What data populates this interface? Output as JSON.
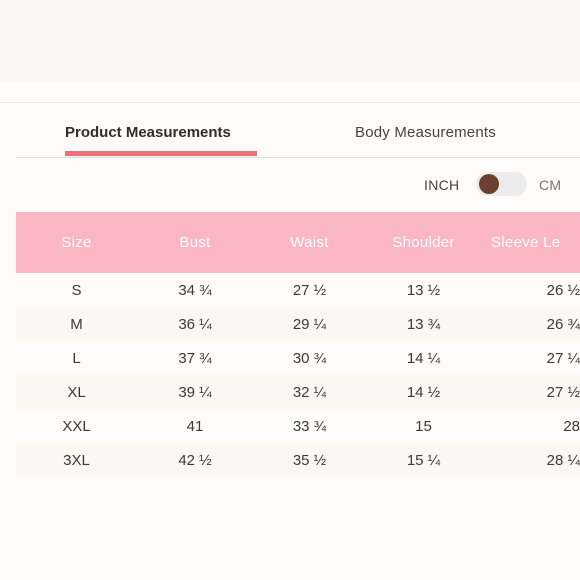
{
  "tabs": {
    "product_label": "Product Measurements",
    "body_label": "Body Measurements"
  },
  "unit_toggle": {
    "left_label": "INCH",
    "right_label": "CM",
    "selected": "INCH"
  },
  "colors": {
    "accent": "#ee6f80",
    "header_bg": "#fbb6c3",
    "knob": "#6a4030"
  },
  "table": {
    "headers": [
      "Size",
      "Bust",
      "Waist",
      "Shoulder",
      "Sleeve Le"
    ],
    "rows": [
      [
        "S",
        "34 ¾",
        "27 ½",
        "13 ½",
        "26 ½"
      ],
      [
        "M",
        "36 ¼",
        "29 ¼",
        "13 ¾",
        "26 ¾"
      ],
      [
        "L",
        "37 ¾",
        "30 ¾",
        "14 ¼",
        "27 ¼"
      ],
      [
        "XL",
        "39 ¼",
        "32 ¼",
        "14 ½",
        "27 ½"
      ],
      [
        "XXL",
        "41",
        "33 ¾",
        "15",
        "28"
      ],
      [
        "3XL",
        "42 ½",
        "35 ½",
        "15 ¼",
        "28 ¼"
      ]
    ]
  }
}
